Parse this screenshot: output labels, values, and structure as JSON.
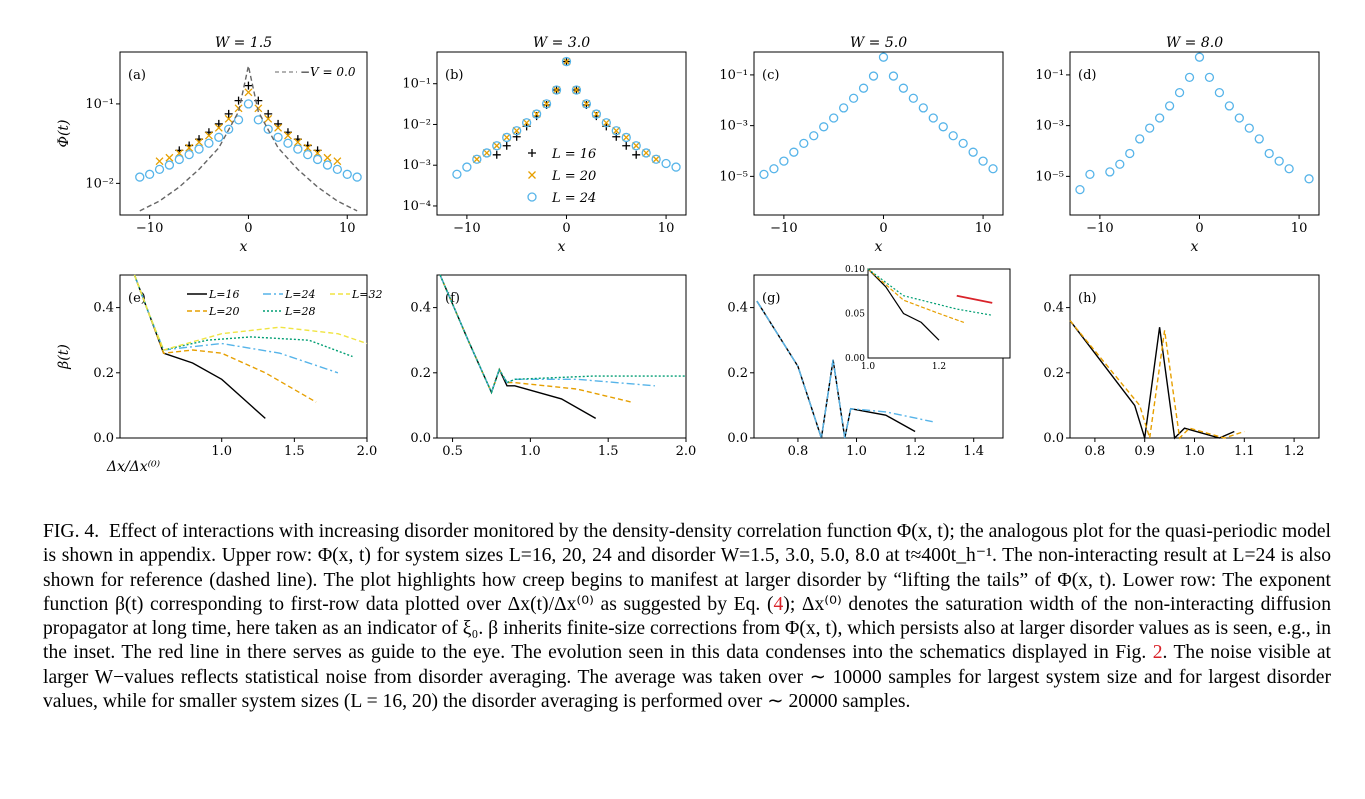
{
  "figure": {
    "top_row": [
      {
        "panel": "(a)",
        "title": "W = 1.5",
        "ylabel": "Φ(t)",
        "xlabel": "x",
        "legend_nonint": "V = 0.0"
      },
      {
        "panel": "(b)",
        "title": "W = 3.0",
        "xlabel": "x"
      },
      {
        "panel": "(c)",
        "title": "W = 5.0",
        "xlabel": "x"
      },
      {
        "panel": "(d)",
        "title": "W = 8.0",
        "xlabel": "x"
      }
    ],
    "bottom_row": [
      {
        "panel": "(e)",
        "ylabel": "β(t)",
        "xlabel": "Δx/Δx⁽⁰⁾"
      },
      {
        "panel": "(f)"
      },
      {
        "panel": "(g)"
      },
      {
        "panel": "(h)"
      }
    ],
    "legend_top": [
      "L = 16",
      "L = 20",
      "L = 24"
    ],
    "legend_bottom": [
      "L=16",
      "L=24",
      "L=32",
      "L=20",
      "L=28"
    ],
    "colors": {
      "L16": "#000000",
      "L20": "#e69f00",
      "L24": "#56b4e9",
      "L28": "#009e73",
      "L32": "#f0e442",
      "nonint": "#666666",
      "guide": "#d9232a"
    }
  },
  "chart_data": [
    {
      "type": "scatter",
      "panel": "(a)",
      "title": "W = 1.5",
      "xlabel": "x",
      "ylabel": "Φ(t)",
      "yscale": "log",
      "xlim": [
        -13,
        12
      ],
      "ylim": [
        0.004,
        0.45
      ],
      "xticks": [
        "−10",
        "0",
        "10"
      ],
      "yticks": [
        "10⁻²",
        "10⁻¹"
      ],
      "series": [
        {
          "name": "L = 16",
          "marker": "+",
          "x": [
            -7,
            -6,
            -5,
            -4,
            -3,
            -2,
            -1,
            0,
            1,
            2,
            3,
            4,
            5,
            6,
            7
          ],
          "y": [
            0.026,
            0.03,
            0.036,
            0.044,
            0.056,
            0.075,
            0.11,
            0.17,
            0.11,
            0.075,
            0.056,
            0.044,
            0.036,
            0.03,
            0.026
          ]
        },
        {
          "name": "L = 20",
          "marker": "x",
          "x": [
            -9,
            -8,
            -7,
            -6,
            -5,
            -4,
            -3,
            -2,
            -1,
            0,
            1,
            2,
            3,
            4,
            5,
            6,
            7,
            8,
            9
          ],
          "y": [
            0.019,
            0.021,
            0.024,
            0.028,
            0.033,
            0.04,
            0.05,
            0.065,
            0.088,
            0.14,
            0.088,
            0.065,
            0.05,
            0.04,
            0.033,
            0.028,
            0.024,
            0.021,
            0.019
          ]
        },
        {
          "name": "L = 24",
          "marker": "o",
          "x": [
            -11,
            -10,
            -9,
            -8,
            -7,
            -6,
            -5,
            -4,
            -3,
            -2,
            -1,
            0,
            1,
            2,
            3,
            4,
            5,
            6,
            7,
            8,
            9,
            10,
            11
          ],
          "y": [
            0.012,
            0.013,
            0.015,
            0.017,
            0.02,
            0.023,
            0.027,
            0.032,
            0.038,
            0.048,
            0.063,
            0.1,
            0.063,
            0.048,
            0.038,
            0.032,
            0.027,
            0.023,
            0.02,
            0.017,
            0.015,
            0.013,
            0.012
          ]
        },
        {
          "name": "V = 0.0",
          "line": "dashed",
          "x": [
            -11,
            -9,
            -7,
            -5,
            -3,
            -1,
            0,
            1,
            3,
            5,
            7,
            9,
            11
          ],
          "y": [
            0.0045,
            0.006,
            0.009,
            0.015,
            0.028,
            0.08,
            0.3,
            0.08,
            0.028,
            0.015,
            0.009,
            0.006,
            0.0045
          ]
        }
      ]
    },
    {
      "type": "scatter",
      "panel": "(b)",
      "title": "W = 3.0",
      "xlabel": "x",
      "yscale": "log",
      "xlim": [
        -13,
        12
      ],
      "ylim": [
        6e-05,
        0.6
      ],
      "xticks": [
        "−10",
        "0",
        "10"
      ],
      "yticks": [
        "10⁻⁴",
        "10⁻³",
        "10⁻²",
        "10⁻¹"
      ],
      "series": [
        {
          "name": "L = 16",
          "marker": "+",
          "x": [
            -7,
            -6,
            -5,
            -4,
            -3,
            -2,
            -1,
            0,
            1,
            2,
            3,
            4,
            5,
            6,
            7
          ],
          "y": [
            0.0018,
            0.003,
            0.005,
            0.009,
            0.016,
            0.03,
            0.07,
            0.35,
            0.07,
            0.03,
            0.016,
            0.009,
            0.005,
            0.003,
            0.0018
          ]
        },
        {
          "name": "L = 20",
          "marker": "x",
          "x": [
            -9,
            -8,
            -7,
            -6,
            -5,
            -4,
            -3,
            -2,
            -1,
            0,
            1,
            2,
            3,
            4,
            5,
            6,
            7,
            8,
            9
          ],
          "y": [
            0.0014,
            0.002,
            0.003,
            0.0048,
            0.007,
            0.011,
            0.018,
            0.032,
            0.07,
            0.35,
            0.07,
            0.032,
            0.018,
            0.011,
            0.007,
            0.0048,
            0.003,
            0.002,
            0.0014
          ]
        },
        {
          "name": "L = 24",
          "marker": "o",
          "x": [
            -11,
            -10,
            -9,
            -8,
            -7,
            -6,
            -5,
            -4,
            -3,
            -2,
            -1,
            0,
            1,
            2,
            3,
            4,
            5,
            6,
            7,
            8,
            9,
            10,
            11
          ],
          "y": [
            0.0006,
            0.0009,
            0.0014,
            0.002,
            0.003,
            0.0048,
            0.007,
            0.011,
            0.018,
            0.032,
            0.07,
            0.35,
            0.07,
            0.032,
            0.018,
            0.011,
            0.007,
            0.0048,
            0.003,
            0.002,
            0.0014,
            0.0011,
            0.0009
          ]
        }
      ]
    },
    {
      "type": "scatter",
      "panel": "(c)",
      "title": "W = 5.0",
      "xlabel": "x",
      "yscale": "log",
      "xlim": [
        -13,
        12
      ],
      "ylim": [
        3e-07,
        0.8
      ],
      "xticks": [
        "−10",
        "0",
        "10"
      ],
      "yticks": [
        "10⁻⁵",
        "10⁻³",
        "10⁻¹"
      ],
      "series": [
        {
          "name": "L = 24",
          "marker": "o",
          "x": [
            -12,
            -11,
            -10,
            -9,
            -8,
            -7,
            -6,
            -5,
            -4,
            -3,
            -2,
            -1,
            0,
            1,
            2,
            3,
            4,
            5,
            6,
            7,
            8,
            9,
            10,
            11
          ],
          "y": [
            1.2e-05,
            2e-05,
            4e-05,
            9e-05,
            0.0002,
            0.0004,
            0.0009,
            0.002,
            0.005,
            0.012,
            0.03,
            0.09,
            0.5,
            0.09,
            0.03,
            0.012,
            0.005,
            0.002,
            0.0009,
            0.0004,
            0.0002,
            9e-05,
            4e-05,
            2e-05
          ]
        }
      ]
    },
    {
      "type": "scatter",
      "panel": "(d)",
      "title": "W = 8.0",
      "xlabel": "x",
      "yscale": "log",
      "xlim": [
        -13,
        12
      ],
      "ylim": [
        3e-07,
        0.8
      ],
      "xticks": [
        "−10",
        "0",
        "10"
      ],
      "yticks": [
        "10⁻⁵",
        "10⁻³",
        "10⁻¹"
      ],
      "series": [
        {
          "name": "L = 24",
          "marker": "o",
          "x": [
            -12,
            -11,
            -9,
            -8,
            -7,
            -6,
            -5,
            -4,
            -3,
            -2,
            -1,
            0,
            1,
            2,
            3,
            4,
            5,
            6,
            7,
            8,
            9,
            11
          ],
          "y": [
            3e-06,
            1.2e-05,
            1.5e-05,
            3e-05,
            8e-05,
            0.0003,
            0.0008,
            0.002,
            0.006,
            0.02,
            0.08,
            0.5,
            0.08,
            0.02,
            0.006,
            0.002,
            0.0008,
            0.0003,
            8e-05,
            4e-05,
            2e-05,
            8e-06
          ]
        }
      ]
    },
    {
      "type": "line",
      "panel": "(e)",
      "xlabel": "Δx/Δx⁽⁰⁾",
      "ylabel": "β(t)",
      "xlim": [
        0.3,
        2.0
      ],
      "ylim": [
        0,
        0.5
      ],
      "xticks": [
        "1.0",
        "1.5",
        "2.0"
      ],
      "yticks": [
        "0.0",
        "0.2",
        "0.4"
      ],
      "series": [
        {
          "name": "L=16",
          "x": [
            0.4,
            0.5,
            0.6,
            0.8,
            1.0,
            1.2,
            1.3
          ],
          "y": [
            0.5,
            0.38,
            0.26,
            0.23,
            0.18,
            0.1,
            0.06
          ]
        },
        {
          "name": "L=20",
          "x": [
            0.4,
            0.5,
            0.6,
            0.8,
            1.0,
            1.3,
            1.65
          ],
          "y": [
            0.5,
            0.38,
            0.26,
            0.27,
            0.26,
            0.2,
            0.11
          ]
        },
        {
          "name": "L=24",
          "x": [
            0.4,
            0.5,
            0.6,
            0.8,
            1.0,
            1.4,
            1.8
          ],
          "y": [
            0.5,
            0.38,
            0.27,
            0.28,
            0.29,
            0.26,
            0.2
          ]
        },
        {
          "name": "L=28",
          "x": [
            0.4,
            0.5,
            0.6,
            0.9,
            1.2,
            1.6,
            1.9
          ],
          "y": [
            0.5,
            0.38,
            0.27,
            0.3,
            0.31,
            0.3,
            0.25
          ]
        },
        {
          "name": "L=32",
          "x": [
            0.4,
            0.5,
            0.6,
            1.0,
            1.4,
            1.8,
            2.0
          ],
          "y": [
            0.5,
            0.38,
            0.27,
            0.32,
            0.34,
            0.32,
            0.29
          ]
        }
      ]
    },
    {
      "type": "line",
      "panel": "(f)",
      "xlim": [
        0.4,
        2.0
      ],
      "ylim": [
        0,
        0.5
      ],
      "xticks": [
        "0.5",
        "1.0",
        "1.5",
        "2.0"
      ],
      "yticks": [
        "0.0",
        "0.2",
        "0.4"
      ],
      "series": [
        {
          "name": "L=16",
          "x": [
            0.42,
            0.6,
            0.75,
            0.8,
            0.85,
            0.9,
            1.2,
            1.42
          ],
          "y": [
            0.5,
            0.3,
            0.14,
            0.21,
            0.16,
            0.16,
            0.12,
            0.06
          ]
        },
        {
          "name": "L=20",
          "x": [
            0.42,
            0.6,
            0.75,
            0.8,
            0.85,
            0.9,
            1.3,
            1.65
          ],
          "y": [
            0.5,
            0.3,
            0.14,
            0.21,
            0.17,
            0.17,
            0.15,
            0.11
          ]
        },
        {
          "name": "L=24",
          "x": [
            0.42,
            0.6,
            0.75,
            0.8,
            0.85,
            0.9,
            1.3,
            1.8
          ],
          "y": [
            0.5,
            0.3,
            0.14,
            0.21,
            0.17,
            0.18,
            0.18,
            0.16
          ]
        },
        {
          "name": "L=28",
          "x": [
            0.42,
            0.6,
            0.75,
            0.8,
            0.85,
            0.9,
            1.4,
            2.0
          ],
          "y": [
            0.5,
            0.3,
            0.14,
            0.21,
            0.17,
            0.18,
            0.19,
            0.19
          ]
        }
      ]
    },
    {
      "type": "line",
      "panel": "(g)",
      "xlim": [
        0.65,
        1.5
      ],
      "ylim": [
        0,
        0.5
      ],
      "xticks": [
        "0.8",
        "1.0",
        "1.2",
        "1.4"
      ],
      "yticks": [
        "0.0",
        "0.2",
        "0.4"
      ],
      "series": [
        {
          "name": "L=16",
          "x": [
            0.66,
            0.8,
            0.88,
            0.92,
            0.96,
            0.98,
            1.1,
            1.2
          ],
          "y": [
            0.42,
            0.22,
            0.0,
            0.24,
            0.0,
            0.09,
            0.07,
            0.02
          ]
        },
        {
          "name": "L=24",
          "x": [
            0.66,
            0.8,
            0.88,
            0.92,
            0.96,
            0.98,
            1.1,
            1.26
          ],
          "y": [
            0.42,
            0.22,
            0.0,
            0.24,
            0.0,
            0.09,
            0.08,
            0.05
          ]
        }
      ],
      "inset": {
        "xlim": [
          1.0,
          1.4
        ],
        "ylim": [
          0,
          0.1
        ],
        "xticks": [
          "1.0",
          "1.2"
        ],
        "yticks": [
          "0.00",
          "0.05",
          "0.10"
        ],
        "guide_line": {
          "x": [
            1.25,
            1.35
          ],
          "y": [
            0.07,
            0.062
          ]
        }
      }
    },
    {
      "type": "line",
      "panel": "(h)",
      "xlim": [
        0.75,
        1.25
      ],
      "ylim": [
        0,
        0.5
      ],
      "xticks": [
        "0.8",
        "0.9",
        "1.0",
        "1.1",
        "1.2"
      ],
      "yticks": [
        "0.0",
        "0.2",
        "0.4"
      ],
      "series": [
        {
          "name": "L=16",
          "x": [
            0.75,
            0.88,
            0.9,
            0.93,
            0.96,
            0.98,
            1.05,
            1.08
          ],
          "y": [
            0.36,
            0.1,
            0.0,
            0.34,
            0.0,
            0.03,
            0.0,
            0.02
          ]
        },
        {
          "name": "L=20",
          "x": [
            0.75,
            0.89,
            0.91,
            0.94,
            0.97,
            0.99,
            1.06,
            1.1
          ],
          "y": [
            0.36,
            0.1,
            0.0,
            0.33,
            0.0,
            0.03,
            0.0,
            0.02
          ]
        }
      ]
    }
  ],
  "caption": {
    "label": "FIG. 4.",
    "text": "Effect of interactions with increasing disorder monitored by the density-density correlation function Φ(x, t); the analogous plot for the quasi-periodic model is shown in appendix. Upper row: Φ(x, t) for system sizes L=16, 20, 24 and disorder W=1.5, 3.0, 5.0, 8.0 at t≈400t_h⁻¹. The non-interacting result at L=24 is also shown for reference (dashed line). The plot highlights how creep begins to manifest at larger disorder by “lifting the tails” of Φ(x, t). Lower row: The exponent function β(t) corresponding to first-row data plotted over Δx(t)/Δx⁽⁰⁾ as suggested by Eq. (",
    "eq_ref": "4",
    "text2": "); Δx⁽⁰⁾ denotes the saturation width of the non-interacting diffusion propagator at long time, here taken as an indicator of ξ₀. β inherits finite-size corrections from Φ(x, t), which persists also at larger disorder values as is seen, e.g., in the inset. The red line in there serves as guide to the eye. The evolution seen in this data condenses into the schematics displayed in Fig. ",
    "fig_ref": "2",
    "text3": ". The noise visible at larger W−values reflects statistical noise from disorder averaging. The average was taken over ∼ 10000 samples for largest system size and for largest disorder values, while for smaller system sizes (L = 16, 20) the disorder averaging is performed over ∼ 20000 samples."
  }
}
